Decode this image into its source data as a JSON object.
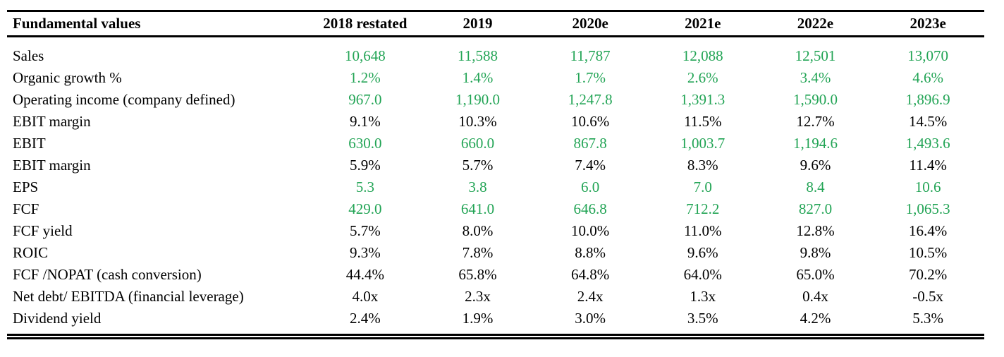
{
  "table": {
    "title": "Fundamental values",
    "columns": [
      "2018 restated",
      "2019",
      "2020e",
      "2021e",
      "2022e",
      "2023e"
    ],
    "rows": [
      {
        "label": "Sales",
        "value_color": "green",
        "values": [
          "10,648",
          "11,588",
          "11,787",
          "12,088",
          "12,501",
          "13,070"
        ]
      },
      {
        "label": "Organic growth %",
        "value_color": "green",
        "values": [
          "1.2%",
          "1.4%",
          "1.7%",
          "2.6%",
          "3.4%",
          "4.6%"
        ]
      },
      {
        "label": "Operating income (company defined)",
        "value_color": "green",
        "values": [
          "967.0",
          "1,190.0",
          "1,247.8",
          "1,391.3",
          "1,590.0",
          "1,896.9"
        ]
      },
      {
        "label": "EBIT margin",
        "value_color": "black",
        "values": [
          "9.1%",
          "10.3%",
          "10.6%",
          "11.5%",
          "12.7%",
          "14.5%"
        ]
      },
      {
        "label": "EBIT",
        "value_color": "green",
        "values": [
          "630.0",
          "660.0",
          "867.8",
          "1,003.7",
          "1,194.6",
          "1,493.6"
        ]
      },
      {
        "label": "EBIT margin",
        "value_color": "black",
        "values": [
          "5.9%",
          "5.7%",
          "7.4%",
          "8.3%",
          "9.6%",
          "11.4%"
        ]
      },
      {
        "label": "EPS",
        "value_color": "green",
        "values": [
          "5.3",
          "3.8",
          "6.0",
          "7.0",
          "8.4",
          "10.6"
        ]
      },
      {
        "label": "FCF",
        "value_color": "green",
        "values": [
          "429.0",
          "641.0",
          "646.8",
          "712.2",
          "827.0",
          "1,065.3"
        ]
      },
      {
        "label": "FCF yield",
        "value_color": "black",
        "values": [
          "5.7%",
          "8.0%",
          "10.0%",
          "11.0%",
          "12.8%",
          "16.4%"
        ]
      },
      {
        "label": "ROIC",
        "value_color": "black",
        "values": [
          "9.3%",
          "7.8%",
          "8.8%",
          "9.6%",
          "9.8%",
          "10.5%"
        ]
      },
      {
        "label": "FCF /NOPAT (cash conversion)",
        "value_color": "black",
        "values": [
          "44.4%",
          "65.8%",
          "64.8%",
          "64.0%",
          "65.0%",
          "70.2%"
        ]
      },
      {
        "label": "Net debt/ EBITDA (financial leverage)",
        "value_color": "black",
        "values": [
          "4.0x",
          "2.3x",
          "2.4x",
          "1.3x",
          "0.4x",
          "-0.5x"
        ]
      },
      {
        "label": "Dividend yield",
        "value_color": "black",
        "values": [
          "2.4%",
          "1.9%",
          "3.0%",
          "3.5%",
          "4.2%",
          "5.3%"
        ]
      }
    ],
    "colors": {
      "green": "#22a455",
      "black": "#000000"
    }
  }
}
